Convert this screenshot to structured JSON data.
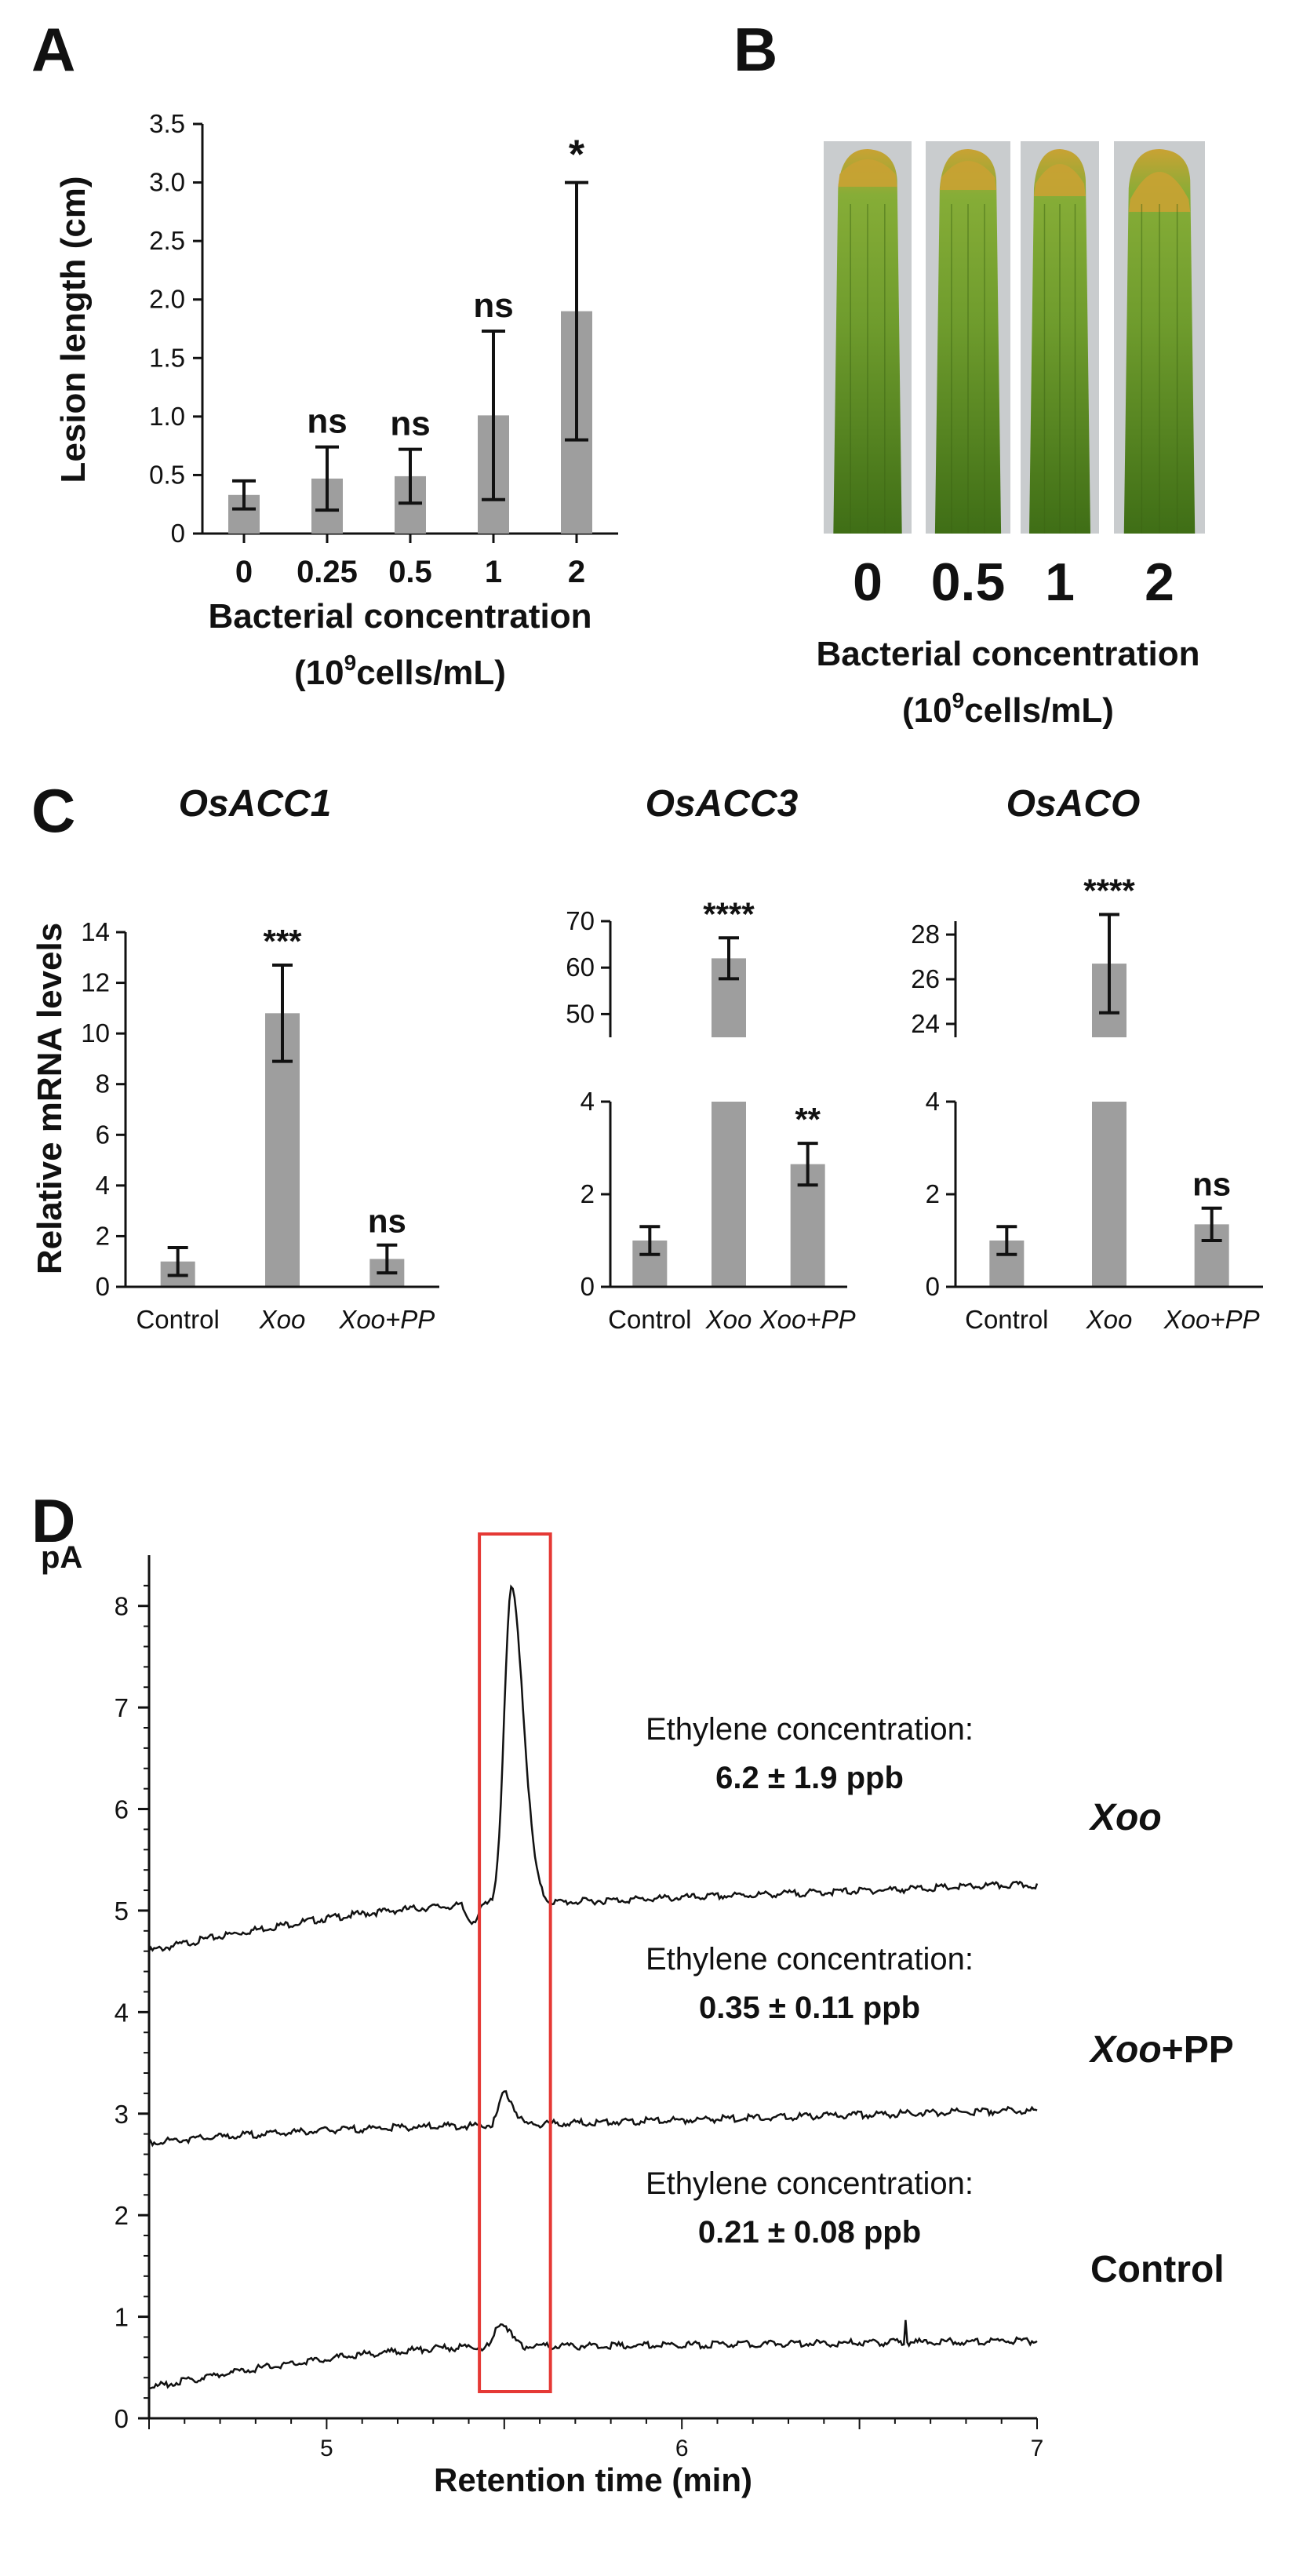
{
  "panel_labels": {
    "a": "A",
    "b": "B",
    "c": "C",
    "d": "D"
  },
  "colors": {
    "bar": "#9e9e9e",
    "axis": "#111111",
    "highlight_box": "#e53935",
    "trace": "#111111"
  },
  "panel_b": {
    "leaf_labels": [
      "0",
      "0.5",
      "1",
      "2"
    ],
    "xlabel": "Bacterial concentration",
    "unit_prefix": "(10",
    "unit_exp": "9",
    "unit_suffix": "cells/mL)",
    "photo_colors": {
      "background": "#c9ccce",
      "leaf_base": "#4f7d1f",
      "leaf_mid": "#6e9a2c",
      "tip": "#c9a233"
    }
  },
  "chart_data": [
    {
      "id": "A",
      "type": "bar",
      "categories": [
        "0",
        "0.25",
        "0.5",
        "1",
        "2"
      ],
      "values": [
        0.33,
        0.47,
        0.49,
        1.01,
        1.9
      ],
      "errors": [
        0.12,
        0.27,
        0.23,
        0.72,
        1.1
      ],
      "significance": [
        "",
        "ns",
        "ns",
        "ns",
        "*"
      ],
      "yticks": [
        "0",
        "0.5",
        "1.0",
        "1.5",
        "2.0",
        "2.5",
        "3.0",
        "3.5"
      ],
      "ylim": [
        0,
        3.5
      ],
      "ylabel": "Lesion length (cm)",
      "xlabel": "Bacterial concentration",
      "xlabel_unit_prefix": "(10",
      "xlabel_unit_exp": "9",
      "xlabel_unit_suffix": "cells/mL)"
    },
    {
      "id": "C",
      "type": "bar",
      "ylabel": "Relative mRNA levels",
      "subplots": [
        {
          "title": "OsACC1",
          "categories": [
            "Control",
            "Xoo",
            "Xoo+PP"
          ],
          "category_italic": [
            false,
            true,
            true
          ],
          "values": [
            1.0,
            10.8,
            1.1
          ],
          "errors": [
            0.55,
            1.9,
            0.55
          ],
          "significance": [
            "",
            "***",
            "ns"
          ],
          "broken": false,
          "ylim": [
            0,
            14
          ],
          "yticks": [
            "0",
            "2",
            "4",
            "6",
            "8",
            "10",
            "12",
            "14"
          ]
        },
        {
          "title": "OsACC3",
          "categories": [
            "Control",
            "Xoo",
            "Xoo+PP"
          ],
          "category_italic": [
            false,
            true,
            true
          ],
          "values": [
            1.0,
            62.0,
            2.65
          ],
          "errors": [
            0.3,
            4.4,
            0.45
          ],
          "significance": [
            "",
            "****",
            "**"
          ],
          "broken": true,
          "lower_ylim": [
            0,
            4
          ],
          "lower_yticks": [
            "0",
            "2",
            "4"
          ],
          "upper_ylim": [
            45,
            70
          ],
          "upper_yticks": [
            "50",
            "60",
            "70"
          ]
        },
        {
          "title": "OsACO",
          "categories": [
            "Control",
            "Xoo",
            "Xoo+PP"
          ],
          "category_italic": [
            false,
            true,
            true
          ],
          "values": [
            1.0,
            26.7,
            1.35
          ],
          "errors": [
            0.3,
            2.2,
            0.35
          ],
          "significance": [
            "",
            "****",
            "ns"
          ],
          "broken": true,
          "lower_ylim": [
            0,
            4
          ],
          "lower_yticks": [
            "0",
            "2",
            "4"
          ],
          "upper_ylim": [
            23.4,
            28.6
          ],
          "upper_yticks": [
            "24",
            "26",
            "28"
          ]
        }
      ]
    },
    {
      "id": "D",
      "type": "line",
      "ylabel": "pA",
      "xlabel": "Retention time (min)",
      "xlim": [
        4.5,
        7
      ],
      "ylim": [
        0,
        8.5
      ],
      "xticks": [
        "5",
        "6",
        "7"
      ],
      "yticks": [
        "0",
        "1",
        "2",
        "3",
        "4",
        "5",
        "6",
        "7",
        "8"
      ],
      "highlight_window": [
        5.43,
        5.63
      ],
      "series": [
        {
          "name": "Xoo",
          "name_italic": "Xoo",
          "name_rest": "",
          "baseline_start": 4.6,
          "baseline_end": 5.25,
          "pre_peak": 5.05,
          "peak_x": 5.52,
          "peak_y": 8.15,
          "annotation_line1": "Ethylene concentration:",
          "annotation_line2": "6.2 ± 1.9 ppb"
        },
        {
          "name": "Xoo+PP",
          "name_italic": "Xoo",
          "name_rest": "+PP",
          "baseline_start": 2.72,
          "baseline_end": 3.03,
          "pre_peak": 2.88,
          "peak_x": 5.5,
          "peak_y": 3.2,
          "annotation_line1": "Ethylene concentration:",
          "annotation_line2": "0.35 ± 0.11 ppb"
        },
        {
          "name": "Control",
          "name_italic": "",
          "name_rest": "Control",
          "baseline_start": 0.3,
          "baseline_end": 0.76,
          "pre_peak": 0.7,
          "peak_x": 5.49,
          "peak_y": 0.95,
          "spike_x": 6.63,
          "spike_y": 0.98,
          "annotation_line1": "Ethylene concentration:",
          "annotation_line2": "0.21 ± 0.08 ppb"
        }
      ]
    }
  ]
}
